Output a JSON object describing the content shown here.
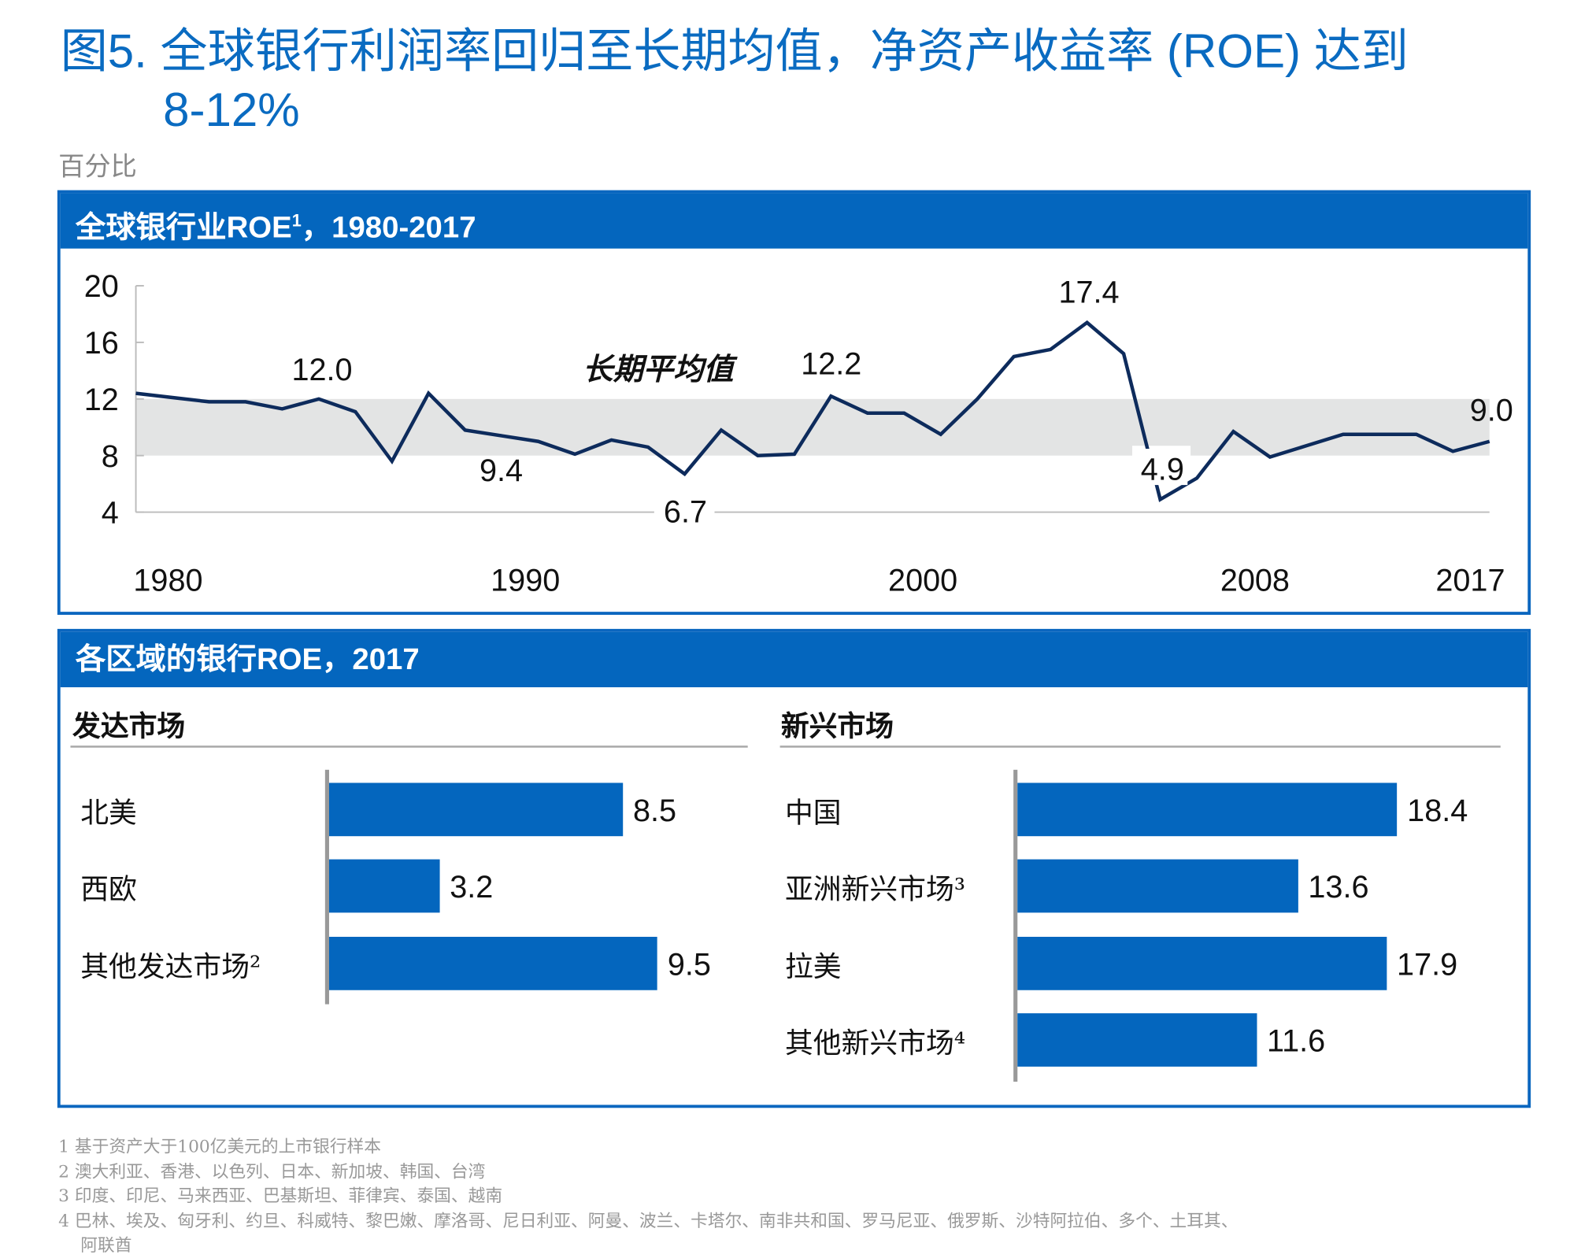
{
  "title_line1": "图5. 全球银行利润率回归至长期均值，净资产收益率 (ROE) 达到",
  "title_line2": "8-12%",
  "unit_label": "百分比",
  "colors": {
    "accent": "#0466be",
    "title": "#0a6bc1",
    "line": "#0d2b5c",
    "band": "#e3e4e4"
  },
  "chart_data": [
    {
      "type": "line",
      "title": "全球银行业ROE¹，1980-2017",
      "title_main": "全球银行业ROE",
      "title_sup": "1",
      "title_rest": "，1980-2017",
      "x": [
        1980,
        1981,
        1982,
        1983,
        1984,
        1985,
        1986,
        1987,
        1988,
        1989,
        1990,
        1991,
        1992,
        1993,
        1994,
        1995,
        1996,
        1997,
        1998,
        1999,
        2000,
        2001,
        2002,
        2003,
        2004,
        2005,
        2006,
        2007,
        2008,
        2009,
        2010,
        2011,
        2012,
        2013,
        2014,
        2015,
        2016,
        2017
      ],
      "series": [
        {
          "values": [
            12.4,
            12.1,
            11.8,
            11.8,
            11.3,
            12.0,
            11.1,
            7.6,
            12.4,
            9.8,
            9.4,
            9.0,
            8.1,
            9.1,
            8.6,
            6.7,
            9.8,
            8.0,
            8.1,
            12.2,
            11.0,
            11.0,
            9.5,
            12.0,
            15.0,
            15.5,
            17.4,
            15.2,
            4.9,
            6.4,
            9.7,
            7.9,
            8.7,
            9.5,
            9.5,
            9.5,
            8.3,
            9.0
          ]
        }
      ],
      "band": {
        "label": "长期平均值",
        "range": [
          8,
          12
        ]
      },
      "ylim": [
        4,
        20
      ],
      "yticks": [
        "20",
        "16",
        "12",
        "8",
        "4"
      ],
      "xtick_labels": [
        "1980",
        "1990",
        "2000",
        "2008",
        "2017"
      ],
      "data_labels": [
        "12.0",
        "9.4",
        "6.7",
        "12.2",
        "17.4",
        "4.9",
        "9.0"
      ],
      "grid": false
    },
    {
      "type": "bar",
      "title": "各区域的银行ROE，2017",
      "groups": [
        {
          "name": "发达市场",
          "categories": [
            "北美",
            "西欧",
            "其他发达市场²"
          ],
          "values": [
            8.5,
            3.2,
            9.5
          ],
          "labels": [
            "8.5",
            "3.2",
            "9.5"
          ]
        },
        {
          "name": "新兴市场",
          "categories": [
            "中国",
            "亚洲新兴市场³",
            "拉美",
            "其他新兴市场⁴"
          ],
          "values": [
            18.4,
            13.6,
            17.9,
            11.6
          ],
          "labels": [
            "18.4",
            "13.6",
            "17.9",
            "11.6"
          ]
        }
      ]
    }
  ],
  "footnotes": [
    "1 基于资产大于100亿美元的上市银行样本",
    "2 澳大利亚、香港、以色列、日本、新加坡、韩国、台湾",
    "3 印度、印尼、马来西亚、巴基斯坦、菲律宾、泰国、越南",
    "4 巴林、埃及、匈牙利、约旦、科威特、黎巴嫩、摩洛哥、尼日利亚、阿曼、波兰、卡塔尔、南非共和国、罗马尼亚、俄罗斯、沙特阿拉伯、多个、土耳其、",
    "阿联酋"
  ]
}
